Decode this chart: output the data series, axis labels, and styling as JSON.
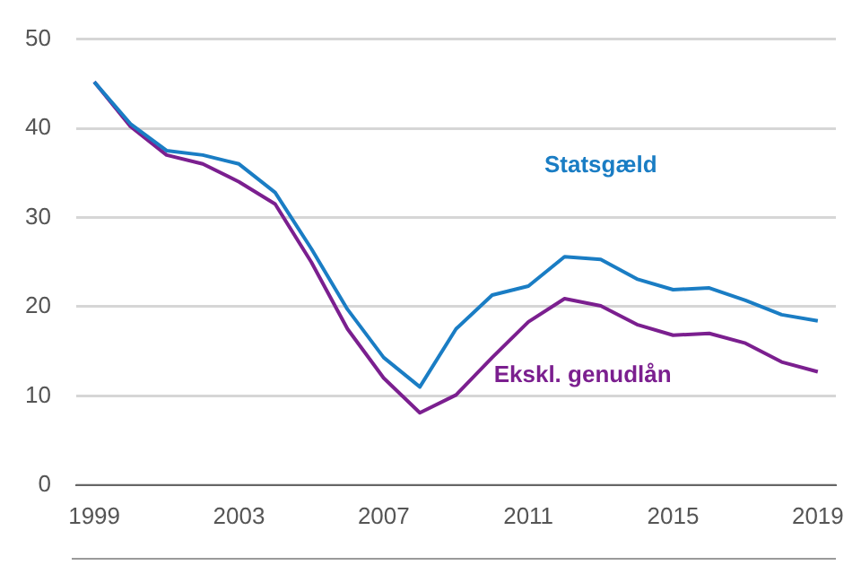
{
  "chart_data": {
    "type": "line",
    "categories": [
      "1999",
      null,
      null,
      null,
      "2003",
      null,
      null,
      null,
      "2007",
      null,
      null,
      null,
      "2011",
      null,
      null,
      null,
      "2015",
      null,
      null,
      null,
      "2019"
    ],
    "series": [
      {
        "name": "Statsgæld",
        "color": "#1a7dc4",
        "values": [
          45.2,
          40.5,
          37.5,
          37,
          36,
          32.8,
          26.5,
          19.7,
          14.3,
          11,
          17.5,
          21.3,
          22.3,
          25.6,
          25.3,
          23.1,
          21.9,
          22.1,
          20.7,
          19.1,
          18.4
        ]
      },
      {
        "name": "Ekskl. genudlån",
        "color": "#7b1f8f",
        "values": [
          45.2,
          40.2,
          37,
          36,
          34,
          31.5,
          25,
          17.5,
          12,
          8.1,
          10.1,
          14.3,
          18.3,
          20.9,
          20.1,
          18,
          16.8,
          17,
          15.9,
          13.8,
          12.7
        ]
      }
    ],
    "ylim": [
      0,
      50
    ],
    "yticks": [
      0,
      10,
      20,
      30,
      40,
      50
    ],
    "grid": "y",
    "legend": false,
    "marker": "none",
    "line_style": "solid"
  }
}
